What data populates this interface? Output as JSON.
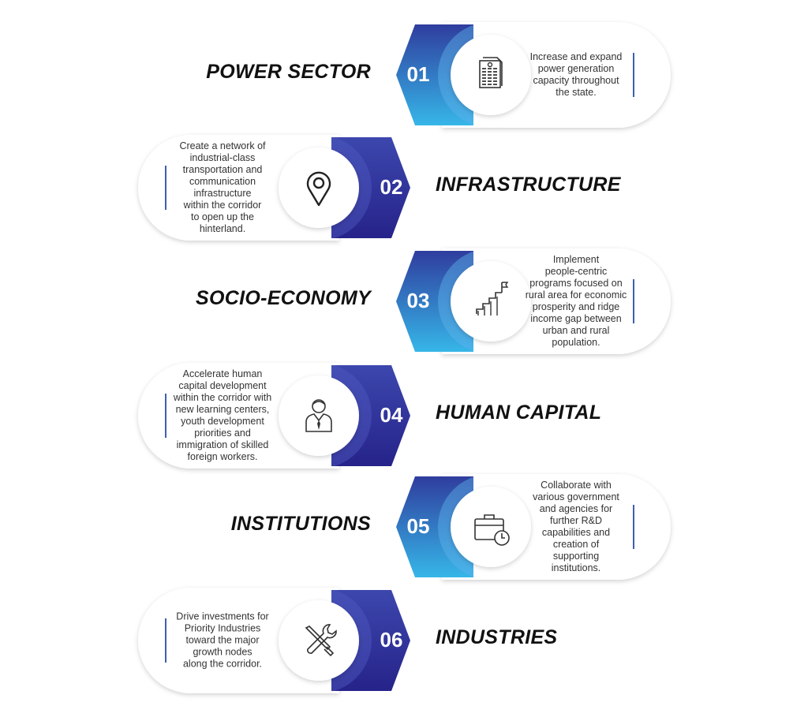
{
  "colors": {
    "odd_gradient_top": "#2f3d9e",
    "odd_gradient_bottom": "#36b6e8",
    "even_gradient_top": "#3c47ad",
    "even_gradient_bottom": "#26238a",
    "accent_bar": "#3d5fb0",
    "title": "#111111",
    "text": "#333333"
  },
  "items": [
    {
      "number": "01",
      "title": "POWER SECTOR",
      "icon": "document-icon",
      "description": "Increase and expand\npower generation\ncapacity throughout\nthe state."
    },
    {
      "number": "02",
      "title": "INFRASTRUCTURE",
      "icon": "location-pin-icon",
      "description": "Create a network of\nindustrial-class\ntransportation and\ncommunication\ninfrastructure\nwithin the corridor\nto open up the\nhinterland."
    },
    {
      "number": "03",
      "title": "SOCIO-ECONOMY",
      "icon": "stairs-flag-icon",
      "description": "Implement\npeople-centric\nprograms focused on\nrural area for economic\nprosperity and ridge\nincome gap between\nurban and rural\npopulation."
    },
    {
      "number": "04",
      "title": "HUMAN CAPITAL",
      "icon": "person-icon",
      "description": "Accelerate human\ncapital development\nwithin the corridor with\nnew learning centers,\nyouth development\npriorities and\nimmigration of skilled\nforeign workers."
    },
    {
      "number": "05",
      "title": "INSTITUTIONS",
      "icon": "briefcase-clock-icon",
      "description": "Collaborate with\nvarious government\nand agencies for\nfurther R&D\ncapabilities and\ncreation of\nsupporting\ninstitutions."
    },
    {
      "number": "06",
      "title": "INDUSTRIES",
      "icon": "tools-icon",
      "description": "Drive investments for\nPriority Industries\ntoward the major\ngrowth nodes\nalong the corridor."
    }
  ]
}
